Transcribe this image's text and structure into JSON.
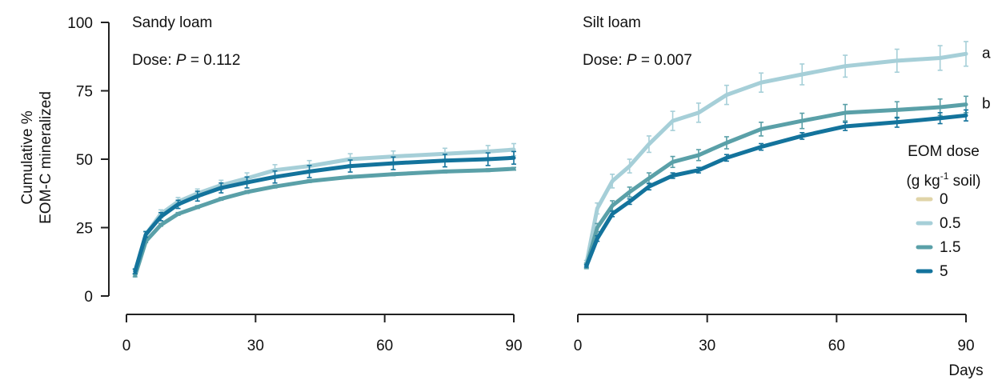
{
  "chart_data": {
    "type": "line",
    "y_axis": {
      "label_line1": "Cumulative %",
      "label_line2": "EOM-C mineralized",
      "ylim": [
        0,
        100
      ],
      "ticks": [
        "0",
        "25",
        "50",
        "75",
        "100"
      ]
    },
    "x_axis": {
      "label": "Days",
      "xlim": [
        0,
        90
      ],
      "ticks": [
        "0",
        "30",
        "60",
        "90"
      ]
    },
    "legend": {
      "title_line1": "EOM dose",
      "title_line2_pre": "(g kg",
      "title_line2_sup": "-1",
      "title_line2_post": " soil)",
      "entries": [
        {
          "label": "0",
          "color": "#e0d4a8"
        },
        {
          "label": "0.5",
          "color": "#a6cfd8"
        },
        {
          "label": "1.5",
          "color": "#5aa0a8"
        },
        {
          "label": "5",
          "color": "#13739c"
        }
      ],
      "placement": "right"
    },
    "panels": [
      {
        "title": "Sandy loam",
        "stat_prefix": "Dose: ",
        "stat_var": "P",
        "stat_value": " = 0.112",
        "x": [
          2,
          4.5,
          8,
          12,
          16.5,
          22,
          28,
          34.5,
          42.5,
          52,
          62,
          74,
          84,
          90
        ],
        "series": [
          {
            "name": "0.5",
            "color": "#a6cfd8",
            "values": [
              9,
              22.5,
              30,
              34.5,
              37.5,
              40.5,
              43,
              46,
              47.5,
              50,
              51,
              52,
              52.8,
              53.5
            ],
            "err": [
              1,
              1.2,
              1.5,
              1.5,
              1.6,
              1.8,
              2,
              2,
              2,
              2,
              2,
              2,
              2.2,
              2.2
            ]
          },
          {
            "name": "1.5",
            "color": "#5aa0a8",
            "values": [
              7.5,
              20,
              26,
              30,
              32.5,
              35.5,
              38,
              40,
              42,
              43.5,
              44.5,
              45.5,
              46,
              46.5
            ],
            "err": [
              0.5,
              0.5,
              0.5,
              0.5,
              0.5,
              0.5,
              0.5,
              0.5,
              0.5,
              0.5,
              0.5,
              0.5,
              0.5,
              0.5
            ]
          },
          {
            "name": "5",
            "color": "#13739c",
            "values": [
              9,
              22.5,
              29,
              33.5,
              36.5,
              39.5,
              41.5,
              43.5,
              45.5,
              47.5,
              48.5,
              49.5,
              50,
              50.5
            ],
            "err": [
              0.8,
              1,
              1.5,
              1.5,
              1.8,
              1.8,
              2,
              2.2,
              2.2,
              2.2,
              2.3,
              2.3,
              2.3,
              2.3
            ]
          }
        ],
        "annotations": []
      },
      {
        "title": "Silt loam",
        "stat_prefix": "Dose: ",
        "stat_var": "P",
        "stat_value": " = 0.007",
        "x": [
          2,
          4.5,
          8,
          12,
          16.5,
          22,
          28,
          34.5,
          42.5,
          52,
          62,
          74,
          84,
          90
        ],
        "series": [
          {
            "name": "0.5",
            "color": "#a6cfd8",
            "values": [
              12,
              32,
              42,
              47.5,
              55.5,
              64,
              67,
              73.5,
              78,
              81,
              84,
              86,
              87,
              88.5
            ],
            "err": [
              1,
              2,
              2.5,
              2.5,
              3,
              3.5,
              3.5,
              3.5,
              3.5,
              3.8,
              4,
              4.2,
              4.5,
              4.5
            ]
          },
          {
            "name": "1.5",
            "color": "#5aa0a8",
            "values": [
              11,
              25,
              33,
              38,
              43,
              49,
              51.5,
              56,
              61,
              64,
              67,
              68,
              69,
              70
            ],
            "err": [
              1,
              1.5,
              1.8,
              1.8,
              2,
              2,
              2,
              2.2,
              2.5,
              2.8,
              3,
              3,
              3,
              3
            ]
          },
          {
            "name": "5",
            "color": "#13739c",
            "values": [
              11,
              21,
              30,
              34.5,
              40,
              44,
              46,
              50.5,
              54.5,
              58.5,
              62,
              63.5,
              65,
              66
            ],
            "err": [
              0.5,
              1,
              1,
              1,
              1.2,
              1,
              1,
              1.2,
              1.2,
              1.2,
              1.5,
              1.8,
              2,
              2
            ]
          }
        ],
        "annotations": [
          {
            "text": "a",
            "series": "0.5"
          },
          {
            "text": "b",
            "series": "1.5"
          }
        ]
      }
    ]
  }
}
